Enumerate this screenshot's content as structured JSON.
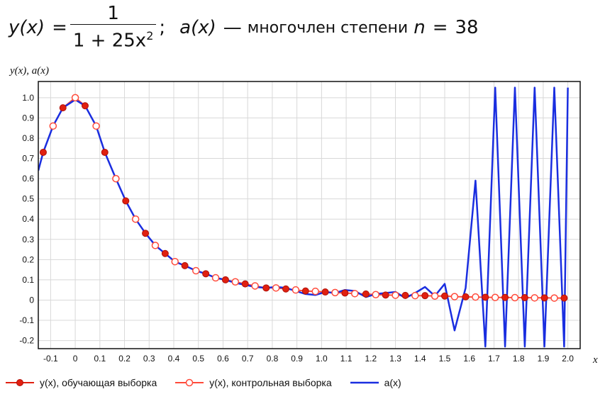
{
  "formula": {
    "lhs": "y(x)",
    "eq": "=",
    "numerator": "1",
    "den_main": "1 + 25x",
    "den_exp": "2",
    "sep": ";",
    "ax": "a(x)",
    "dash": "—",
    "text": "многочлен степени",
    "var": "n",
    "eq2": "=",
    "n_value": "38"
  },
  "colors": {
    "train": "#e02010",
    "control": "#ff4a3a",
    "poly": "#1a2ee0",
    "grid": "#d8d8d8"
  },
  "chart_data": {
    "type": "line",
    "xlabel": "x",
    "ylabel": "y(x), a(x)",
    "xlim": [
      -0.15,
      2.05
    ],
    "ylim": [
      -0.24,
      1.08
    ],
    "xticks": [
      -0.1,
      0,
      0.1,
      0.2,
      0.3,
      0.4,
      0.5,
      0.6,
      0.7,
      0.8,
      0.9,
      1.0,
      1.1,
      1.2,
      1.3,
      1.4,
      1.5,
      1.6,
      1.7,
      1.8,
      1.9,
      2.0
    ],
    "xtick_labels": [
      "-0.1",
      "0",
      "0.1",
      "0.2",
      "0.3",
      "0.4",
      "0.5",
      "0.6",
      "0.7",
      "0.8",
      "0.9",
      "1.0",
      "1.1",
      "1.2",
      "1.3",
      "1.4",
      "1.5",
      "1.6",
      "1.7",
      "1.8",
      "1.9",
      "2.0"
    ],
    "yticks": [
      -0.2,
      -0.1,
      0,
      0.1,
      0.2,
      0.3,
      0.4,
      0.5,
      0.6,
      0.7,
      0.8,
      0.9,
      1.0
    ],
    "ytick_labels": [
      "-0.2",
      "-0.1",
      "0",
      "0.1",
      "0.2",
      "0.3",
      "0.4",
      "0.5",
      "0.6",
      "0.7",
      "0.8",
      "0.9",
      "1.0"
    ],
    "grid": true,
    "legend_position": "bottom",
    "series": [
      {
        "name": "y(x), обучающая выборка",
        "kind": "markers-filled",
        "x": [
          -0.13,
          -0.05,
          0.04,
          0.12,
          0.205,
          0.285,
          0.365,
          0.445,
          0.53,
          0.61,
          0.69,
          0.775,
          0.855,
          0.935,
          1.015,
          1.095,
          1.18,
          1.26,
          1.34,
          1.42,
          1.5,
          1.585,
          1.665,
          1.745,
          1.825,
          1.905,
          1.985
        ],
        "y": [
          0.73,
          0.95,
          0.96,
          0.73,
          0.49,
          0.33,
          0.23,
          0.17,
          0.13,
          0.1,
          0.08,
          0.06,
          0.055,
          0.045,
          0.04,
          0.035,
          0.03,
          0.025,
          0.023,
          0.022,
          0.02,
          0.016,
          0.014,
          0.013,
          0.012,
          0.011,
          0.01
        ]
      },
      {
        "name": "y(x), контрольная выборка",
        "kind": "markers-open",
        "x": [
          -0.09,
          0.0,
          0.085,
          0.165,
          0.245,
          0.325,
          0.405,
          0.49,
          0.57,
          0.65,
          0.73,
          0.815,
          0.895,
          0.975,
          1.055,
          1.135,
          1.22,
          1.3,
          1.38,
          1.46,
          1.54,
          1.625,
          1.705,
          1.785,
          1.865,
          1.945
        ],
        "y": [
          0.86,
          1.0,
          0.86,
          0.6,
          0.4,
          0.27,
          0.19,
          0.145,
          0.11,
          0.09,
          0.07,
          0.06,
          0.05,
          0.043,
          0.037,
          0.032,
          0.027,
          0.024,
          0.022,
          0.02,
          0.017,
          0.015,
          0.013,
          0.012,
          0.011,
          0.01
        ]
      },
      {
        "name": "a(x)",
        "kind": "line",
        "x": [
          -0.15,
          -0.13,
          -0.09,
          -0.05,
          0.0,
          0.04,
          0.085,
          0.12,
          0.165,
          0.205,
          0.245,
          0.285,
          0.325,
          0.365,
          0.405,
          0.445,
          0.49,
          0.53,
          0.57,
          0.61,
          0.65,
          0.69,
          0.73,
          0.775,
          0.815,
          0.855,
          0.895,
          0.935,
          0.975,
          1.015,
          1.055,
          1.095,
          1.135,
          1.18,
          1.22,
          1.26,
          1.3,
          1.34,
          1.38,
          1.42,
          1.46,
          1.5,
          1.54,
          1.585,
          1.625,
          1.665,
          1.705,
          1.745,
          1.785,
          1.825,
          1.865,
          1.905,
          1.945,
          1.985,
          2.0
        ],
        "y": [
          0.64,
          0.73,
          0.86,
          0.95,
          0.99,
          0.96,
          0.86,
          0.73,
          0.6,
          0.49,
          0.4,
          0.33,
          0.27,
          0.23,
          0.19,
          0.17,
          0.145,
          0.13,
          0.11,
          0.1,
          0.085,
          0.075,
          0.065,
          0.06,
          0.065,
          0.06,
          0.045,
          0.03,
          0.025,
          0.04,
          0.035,
          0.05,
          0.045,
          0.015,
          0.03,
          0.035,
          0.04,
          0.01,
          0.035,
          0.065,
          0.02,
          0.08,
          -0.15,
          0.06,
          0.59,
          -0.23,
          1.05,
          -0.23,
          1.05,
          -0.23,
          1.05,
          -0.23,
          1.05,
          -0.23,
          1.05
        ]
      }
    ]
  }
}
